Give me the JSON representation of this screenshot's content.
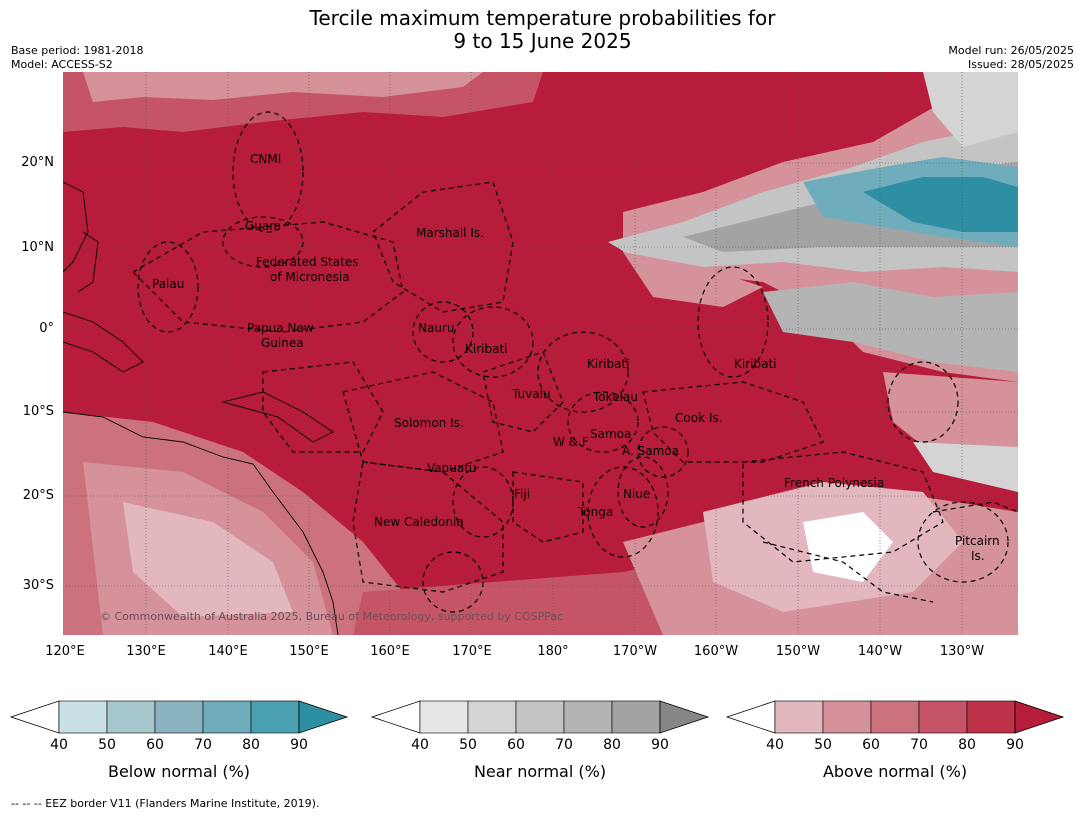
{
  "title_line1": "Tercile maximum temperature probabilities for",
  "title_line2": "9 to 15 June 2025",
  "meta": {
    "base_period": "Base period: 1981-2018",
    "model": "Model: ACCESS-S2",
    "model_run": "Model run: 26/05/2025",
    "issued": "Issued: 28/05/2025"
  },
  "map": {
    "lat_labels": [
      "20°N",
      "10°N",
      "0°",
      "10°S",
      "20°S",
      "30°S"
    ],
    "lon_labels": [
      "120°E",
      "130°E",
      "140°E",
      "150°E",
      "160°E",
      "170°E",
      "180°",
      "170°W",
      "160°W",
      "150°W",
      "140°W",
      "130°W"
    ],
    "places": [
      "CNMI",
      "Guam",
      "Marshall Is.",
      "Federated States",
      "of Micronesia",
      "Palau",
      "Papua New",
      "Guinea",
      "Nauru",
      "Kiribati",
      "Kiribati",
      "Kiribati",
      "Tuvalu",
      "Tokelau",
      "Cook Is.",
      "Solomon Is.",
      "Samoa",
      "W & F",
      "A. Samoa",
      "Vanuatu",
      "Fiji",
      "Niue",
      "Tonga",
      "New Caledonia",
      "French Polynesia",
      "Pitcairn",
      "Is."
    ],
    "copyright": "© Commonwealth of Australia 2025, Bureau of Meteorology, supported by COSPPac"
  },
  "colorbars": [
    {
      "label": "Below normal (%)",
      "ticks": [
        "40",
        "50",
        "60",
        "70",
        "80",
        "90"
      ],
      "colors": [
        "#c9e0e6",
        "#a6c7cd",
        "#8bb4c1",
        "#6fadbd",
        "#4aa0b1",
        "#2f8fa2"
      ]
    },
    {
      "label": "Near normal (%)",
      "ticks": [
        "40",
        "50",
        "60",
        "70",
        "80",
        "90"
      ],
      "colors": [
        "#e6e6e6",
        "#d4d4d4",
        "#c4c4c4",
        "#b4b4b4",
        "#a3a3a3",
        "#868686"
      ]
    },
    {
      "label": "Above normal (%)",
      "ticks": [
        "40",
        "50",
        "60",
        "70",
        "80",
        "90"
      ],
      "colors": [
        "#e2b7bd",
        "#d5929b",
        "#cc727f",
        "#c55566",
        "#bd3249",
        "#b71c3a"
      ]
    }
  ],
  "footnote": "--  --  -- EEZ border V11 (Flanders Marine Institute, 2019)."
}
